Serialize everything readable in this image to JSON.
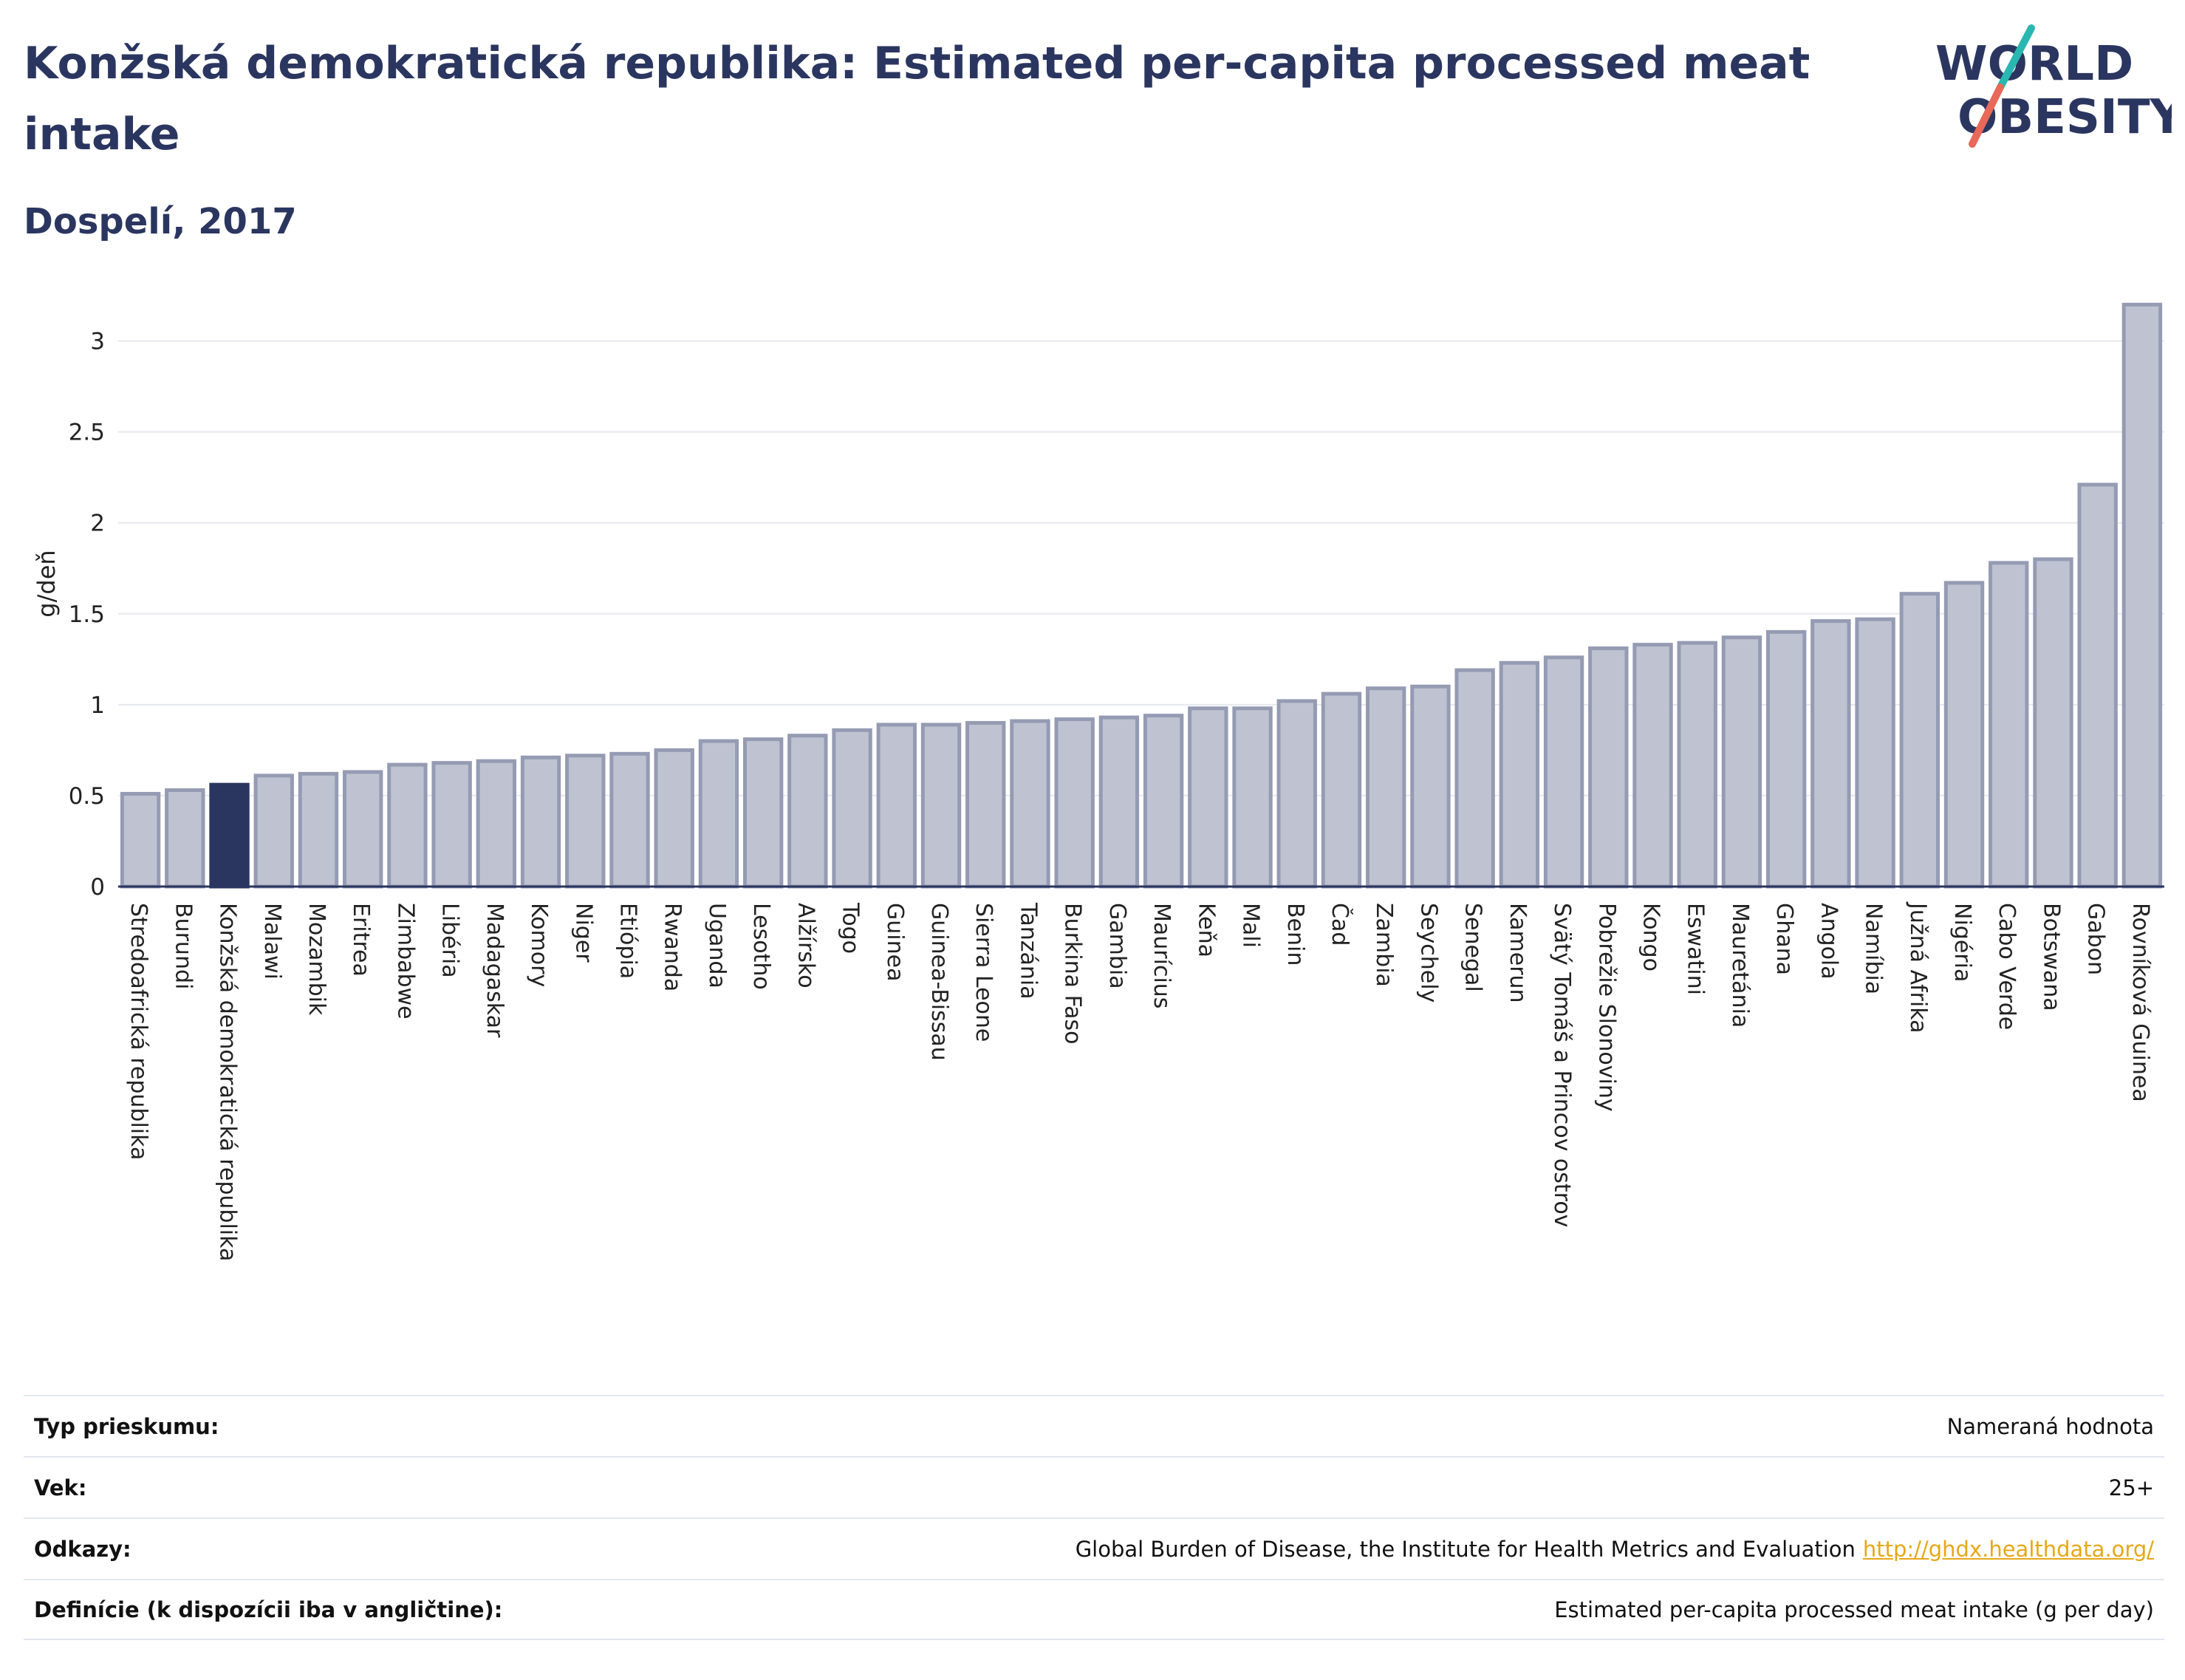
{
  "header": {
    "title": "Konžská demokratická republika: Estimated per-capita processed meat intake",
    "subtitle": "Dospelí, 2017"
  },
  "logo": {
    "line1": "WORLD",
    "line2": "OBESITY",
    "accent_teal": "#2ab7b1",
    "accent_red": "#e8685a",
    "color": "#2b3660"
  },
  "chart_data": {
    "type": "bar",
    "ylabel": "g/deň",
    "ylim": [
      0,
      3.25
    ],
    "yticks": [
      "0",
      "0.5",
      "1",
      "1.5",
      "2",
      "2.5",
      "3"
    ],
    "ytick_values": [
      0,
      0.5,
      1,
      1.5,
      2,
      2.5,
      3
    ],
    "grid": true,
    "highlight": "Konžská demokratická republika",
    "bar_color": "#bfc3d1",
    "bar_edge": "#959bb3",
    "highlight_color": "#2b3660",
    "categories": [
      "Stredoafrická republika",
      "Burundi",
      "Konžská demokratická republika",
      "Malawi",
      "Mozambik",
      "Eritrea",
      "Zimbabwe",
      "Libéria",
      "Madagaskar",
      "Komory",
      "Niger",
      "Etiópia",
      "Rwanda",
      "Uganda",
      "Lesotho",
      "Alžírsko",
      "Togo",
      "Guinea",
      "Guinea-Bissau",
      "Sierra Leone",
      "Tanzánia",
      "Burkina Faso",
      "Gambia",
      "Maurícius",
      "Keňa",
      "Mali",
      "Benin",
      "Čad",
      "Zambia",
      "Seychely",
      "Senegal",
      "Kamerun",
      "Svätý Tomáš a Princov ostrov",
      "Pobrežie Slonoviny",
      "Kongo",
      "Eswatini",
      "Mauretánia",
      "Ghana",
      "Angola",
      "Namíbia",
      "Južná Afrika",
      "Nigéria",
      "Cabo Verde",
      "Botswana",
      "Gabon",
      "Rovníková Guinea"
    ],
    "values": [
      0.51,
      0.53,
      0.56,
      0.61,
      0.62,
      0.63,
      0.67,
      0.68,
      0.69,
      0.71,
      0.72,
      0.73,
      0.75,
      0.8,
      0.81,
      0.83,
      0.86,
      0.89,
      0.89,
      0.9,
      0.91,
      0.92,
      0.93,
      0.94,
      0.98,
      0.98,
      1.02,
      1.06,
      1.09,
      1.1,
      1.19,
      1.23,
      1.26,
      1.31,
      1.33,
      1.34,
      1.37,
      1.4,
      1.46,
      1.47,
      1.61,
      1.67,
      1.78,
      1.8,
      2.21,
      3.2
    ]
  },
  "info": [
    {
      "label": "Typ prieskumu:",
      "value": "Nameraná hodnota"
    },
    {
      "label": "Vek:",
      "value": "25+"
    },
    {
      "label": "Odkazy:",
      "value": "Global Burden of Disease, the Institute for Health Metrics and Evaluation",
      "link": "http://ghdx.healthdata.org/"
    },
    {
      "label": "Definície (k dispozícii iba v angličtine):",
      "value": "Estimated per-capita processed meat intake (g per day)"
    }
  ]
}
